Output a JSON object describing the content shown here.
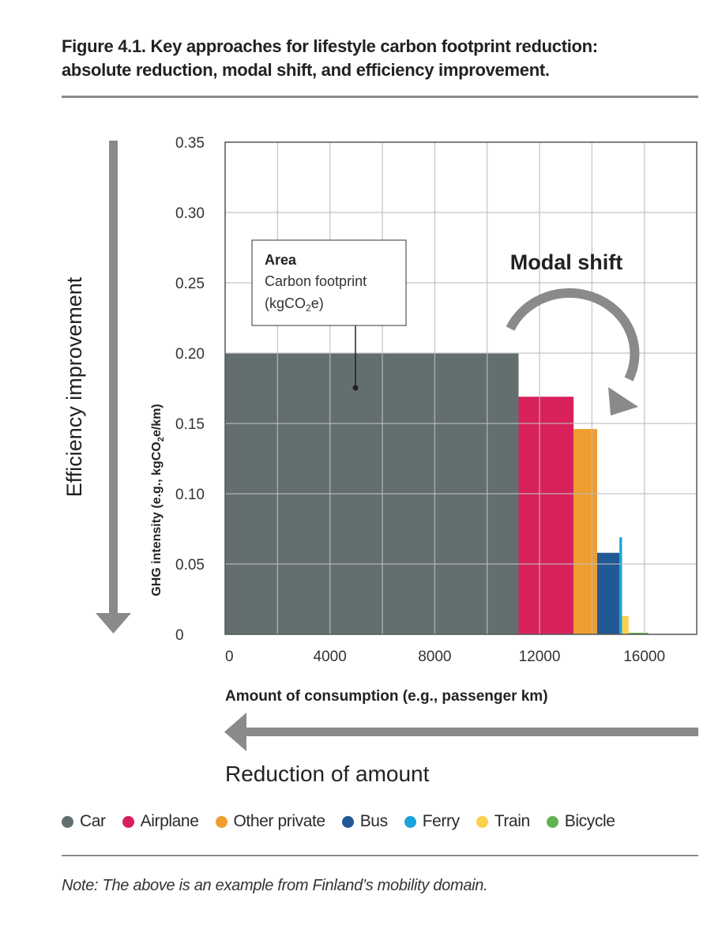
{
  "header": {
    "title_line1": "Figure 4.1. Key approaches for lifestyle carbon footprint reduction:",
    "title_line2": "absolute reduction, modal shift, and efficiency improvement."
  },
  "annotations": {
    "efficiency": "Efficiency improvement",
    "modal_shift": "Modal shift",
    "reduction": "Reduction of amount",
    "callout_title": "Area",
    "callout_line1": "Carbon footprint",
    "callout_line2_pre": "(kgCO",
    "callout_line2_sub": "2",
    "callout_line2_post": "e)"
  },
  "colors": {
    "arrow": "#8a8a8a",
    "grid": "#cfcfcf",
    "axis": "#555555"
  },
  "chart_data": {
    "type": "bar",
    "variant": "variable-width (area = carbon footprint)",
    "title": "Figure 4.1. Key approaches for lifestyle carbon footprint reduction: absolute reduction, modal shift, and efficiency improvement.",
    "xlabel": "Amount of consumption (e.g., passenger km)",
    "ylabel_pre": "GHG intensity (e.g., kgCO",
    "ylabel_sub": "2",
    "ylabel_post": "e/km)",
    "xlim": [
      0,
      18000
    ],
    "ylim": [
      0,
      0.35
    ],
    "x_ticks": [
      0,
      4000,
      8000,
      12000,
      16000
    ],
    "x_tick_labels": [
      "0",
      "4000",
      "8000",
      "12000",
      "16000"
    ],
    "x_grid_step": 2000,
    "y_ticks": [
      0,
      0.05,
      0.1,
      0.15,
      0.2,
      0.25,
      0.3,
      0.35
    ],
    "y_tick_labels": [
      "0",
      "0.05",
      "0.10",
      "0.15",
      "0.20",
      "0.25",
      "0.30",
      "0.35"
    ],
    "grid": true,
    "legend_position": "bottom",
    "series": [
      {
        "name": "Car",
        "color": "#636e6e",
        "x_start": 0,
        "amount": 11200,
        "intensity": 0.2
      },
      {
        "name": "Airplane",
        "color": "#d8215a",
        "x_start": 11200,
        "amount": 2100,
        "intensity": 0.169
      },
      {
        "name": "Other private",
        "color": "#ee9d2e",
        "x_start": 13300,
        "amount": 900,
        "intensity": 0.146
      },
      {
        "name": "Bus",
        "color": "#215896",
        "x_start": 14200,
        "amount": 850,
        "intensity": 0.058
      },
      {
        "name": "Ferry",
        "color": "#1aa3dc",
        "x_start": 15050,
        "amount": 100,
        "intensity": 0.069
      },
      {
        "name": "Train",
        "color": "#fcd04a",
        "x_start": 15150,
        "amount": 250,
        "intensity": 0.013
      },
      {
        "name": "Bicycle",
        "color": "#62b24f",
        "x_start": 15400,
        "amount": 750,
        "intensity": 0.001
      }
    ]
  },
  "note": "Note: The above is an example from Finland’s mobility domain."
}
